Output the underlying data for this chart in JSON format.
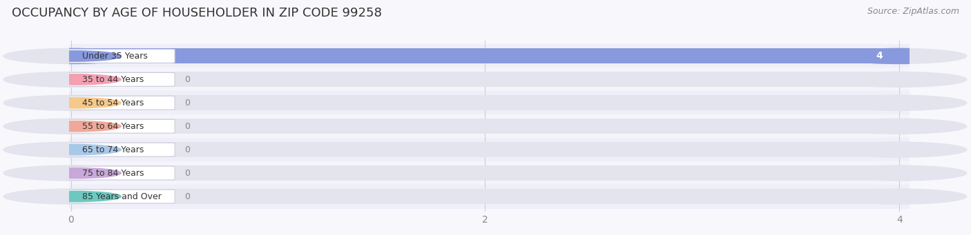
{
  "title": "OCCUPANCY BY AGE OF HOUSEHOLDER IN ZIP CODE 99258",
  "source": "Source: ZipAtlas.com",
  "categories": [
    "Under 35 Years",
    "35 to 44 Years",
    "45 to 54 Years",
    "55 to 64 Years",
    "65 to 74 Years",
    "75 to 84 Years",
    "85 Years and Over"
  ],
  "values": [
    4,
    0,
    0,
    0,
    0,
    0,
    0
  ],
  "bar_colors": [
    "#8899dd",
    "#f4a0b0",
    "#f5c98a",
    "#f0a898",
    "#a8c8e8",
    "#c8a8d8",
    "#6cc8c0"
  ],
  "bar_bg_color": "#e4e4ee",
  "xlim": [
    0,
    4
  ],
  "xticks": [
    0,
    2,
    4
  ],
  "title_fontsize": 13,
  "label_fontsize": 9,
  "tick_fontsize": 10,
  "source_fontsize": 9,
  "bg_color": "#f8f8fc",
  "row_alt_color": "#eeeff8",
  "row_base_color": "#f4f4fa"
}
